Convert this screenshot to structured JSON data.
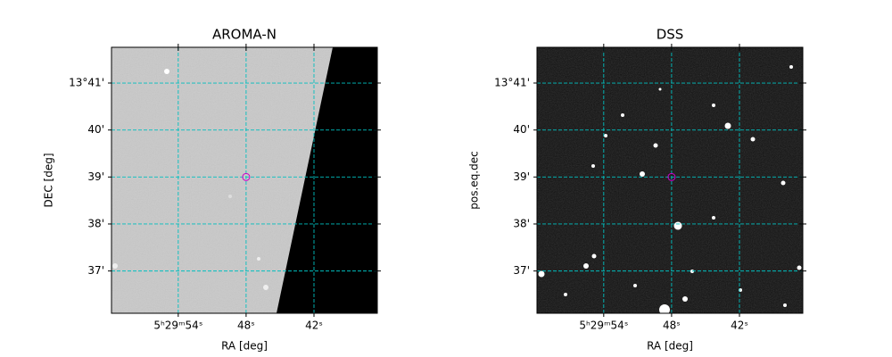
{
  "chart_data": [
    {
      "type": "image",
      "title": "AROMA-N",
      "xlabel": "RA [deg]",
      "ylabel": "DEC [deg]",
      "xlim": [
        59.9,
        36.4
      ],
      "ylim": [
        36.1,
        41.76
      ],
      "xticks": [
        {
          "value": 54,
          "label": "5ʰ29ᵐ54ˢ"
        },
        {
          "value": 48,
          "label": "48ˢ"
        },
        {
          "value": 42,
          "label": "42ˢ"
        }
      ],
      "yticks": [
        {
          "value": 41,
          "label": "13°41'"
        },
        {
          "value": 40,
          "label": "40'"
        },
        {
          "value": 39,
          "label": "39'"
        },
        {
          "value": 38,
          "label": "38'"
        },
        {
          "value": 37,
          "label": "37'"
        }
      ],
      "grid": true,
      "grid_color": "#00bfbf",
      "marker": {
        "x": 48,
        "y": 39,
        "color": "#cc00cc"
      }
    },
    {
      "type": "image",
      "title": "DSS",
      "xlabel": "RA [deg]",
      "ylabel": "pos.eq.dec",
      "xlim": [
        59.9,
        36.4
      ],
      "ylim": [
        36.1,
        41.76
      ],
      "xticks": [
        {
          "value": 54,
          "label": "5ʰ29ᵐ54ˢ"
        },
        {
          "value": 48,
          "label": "48ˢ"
        },
        {
          "value": 42,
          "label": "42ˢ"
        }
      ],
      "yticks": [
        {
          "value": 41,
          "label": "13°41'"
        },
        {
          "value": 40,
          "label": "40'"
        },
        {
          "value": 39,
          "label": "39'"
        },
        {
          "value": 38,
          "label": "38'"
        },
        {
          "value": 37,
          "label": "37'"
        }
      ],
      "grid": true,
      "grid_color": "#00bfbf",
      "marker": {
        "x": 48,
        "y": 39,
        "color": "#cc00cc"
      }
    }
  ]
}
